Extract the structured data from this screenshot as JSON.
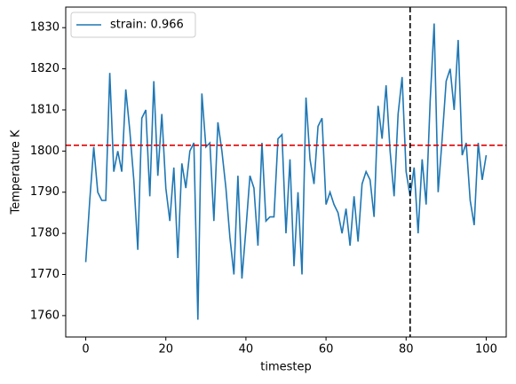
{
  "chart_data": {
    "type": "line",
    "xlabel": "timestep",
    "ylabel": "Temperature K",
    "x": [
      0,
      1,
      2,
      3,
      4,
      5,
      6,
      7,
      8,
      9,
      10,
      11,
      12,
      13,
      14,
      15,
      16,
      17,
      18,
      19,
      20,
      21,
      22,
      23,
      24,
      25,
      26,
      27,
      28,
      29,
      30,
      31,
      32,
      33,
      34,
      35,
      36,
      37,
      38,
      39,
      40,
      41,
      42,
      43,
      44,
      45,
      46,
      47,
      48,
      49,
      50,
      51,
      52,
      53,
      54,
      55,
      56,
      57,
      58,
      59,
      60,
      61,
      62,
      63,
      64,
      65,
      66,
      67,
      68,
      69,
      70,
      71,
      72,
      73,
      74,
      75,
      76,
      77,
      78,
      79,
      80,
      81,
      82,
      83,
      84,
      85,
      86,
      87,
      88,
      89,
      90,
      91,
      92,
      93,
      94,
      95,
      96,
      97,
      98,
      99,
      100
    ],
    "series": [
      {
        "name": "strain: 0.966",
        "color": "#1f77b4",
        "values": [
          1773,
          1788,
          1801,
          1790,
          1788,
          1788,
          1819,
          1795,
          1800,
          1795,
          1815,
          1805,
          1793,
          1776,
          1808,
          1810,
          1789,
          1817,
          1794,
          1809,
          1791,
          1783,
          1796,
          1774,
          1797,
          1791,
          1800,
          1802,
          1759,
          1814,
          1801,
          1802,
          1783,
          1807,
          1800,
          1791,
          1779,
          1770,
          1794,
          1769,
          1781,
          1794,
          1791,
          1777,
          1802,
          1783,
          1784,
          1784,
          1803,
          1804,
          1780,
          1798,
          1772,
          1790,
          1770,
          1813,
          1798,
          1792,
          1806,
          1808,
          1787,
          1790,
          1787,
          1785,
          1780,
          1786,
          1777,
          1789,
          1778,
          1792,
          1795,
          1793,
          1784,
          1811,
          1803,
          1816,
          1800,
          1789,
          1809,
          1818,
          1795,
          1789,
          1796,
          1780,
          1798,
          1787,
          1812,
          1831,
          1790,
          1803,
          1817,
          1820,
          1810,
          1827,
          1799,
          1802,
          1788,
          1782,
          1802,
          1793,
          1799
        ]
      }
    ],
    "hline": {
      "value": 1801.4,
      "color": "#e00000"
    },
    "vline": {
      "value": 81,
      "color": "#000000"
    },
    "xlim": [
      -5,
      105
    ],
    "xticks": [
      0,
      20,
      40,
      60,
      80,
      100
    ],
    "ylim": [
      1754.8,
      1835
    ],
    "yticks": [
      1760,
      1770,
      1780,
      1790,
      1800,
      1810,
      1820,
      1830
    ],
    "legend": "upper left",
    "grid": false
  }
}
